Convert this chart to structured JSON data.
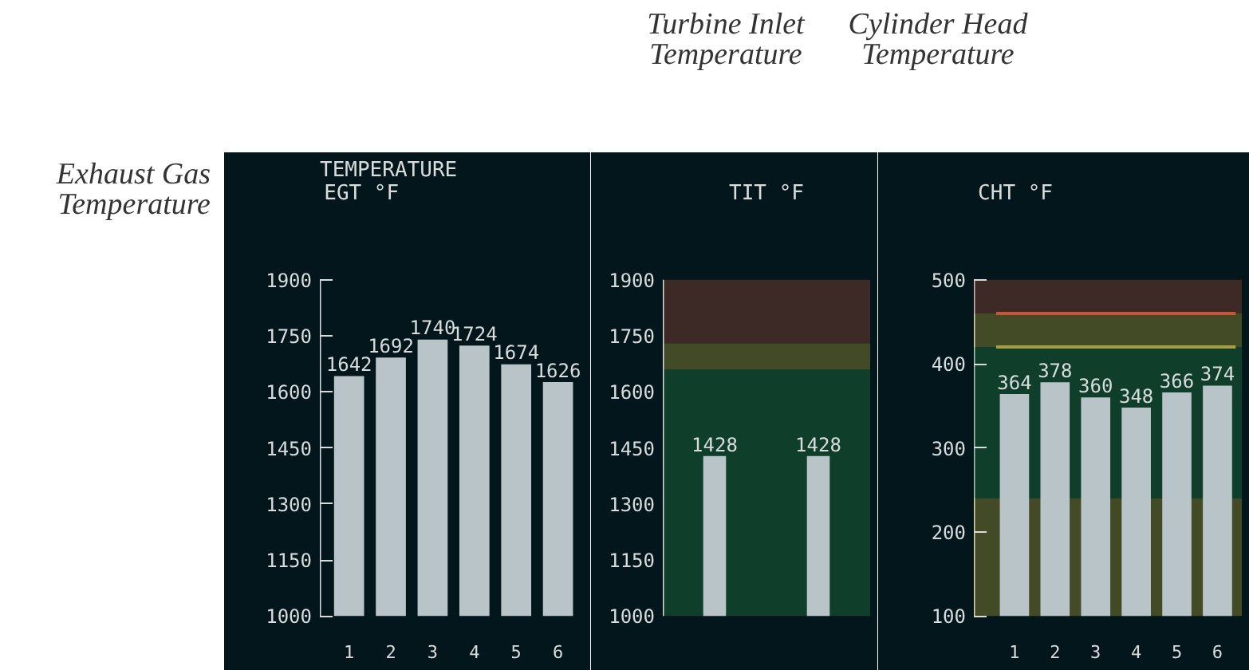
{
  "chart_data": [
    {
      "type": "bar",
      "title": "EGT °F",
      "categories": [
        "1",
        "2",
        "3",
        "4",
        "5",
        "6"
      ],
      "values": [
        1642,
        1692,
        1740,
        1724,
        1674,
        1626
      ],
      "color": "#b8c4c8",
      "ylim": [
        1000,
        1900
      ],
      "yticks": [
        1000,
        1150,
        1300,
        1450,
        1600,
        1750,
        1900
      ],
      "data_labels": true,
      "grid": false,
      "annotations": [
        "TEMPERATURE",
        "Exhaust Gas Temperature"
      ]
    },
    {
      "type": "bar",
      "title": "TIT °F",
      "categories": [
        null,
        null
      ],
      "values": [
        1428,
        1428
      ],
      "color": "#b8c4c8",
      "ylim": [
        1000,
        1900
      ],
      "yticks": [
        1000,
        1150,
        1300,
        1450,
        1600,
        1750,
        1900
      ],
      "data_labels": true,
      "grid": false,
      "bands": [
        {
          "axis": "y",
          "from": 1000,
          "to": 1660,
          "color": "#2f9a4c"
        },
        {
          "axis": "y",
          "from": 1660,
          "to": 1730,
          "color": "#d8c840"
        },
        {
          "axis": "y",
          "from": 1730,
          "to": 1900,
          "color": "#c8553a"
        }
      ],
      "annotations": [
        "Turbine Inlet Temperature"
      ]
    },
    {
      "type": "bar",
      "title": "CHT °F",
      "categories": [
        "1",
        "2",
        "3",
        "4",
        "5",
        "6"
      ],
      "values": [
        364,
        378,
        360,
        348,
        366,
        374
      ],
      "color": "#b8c4c8",
      "ylim": [
        100,
        500
      ],
      "yticks": [
        100,
        200,
        300,
        400,
        500
      ],
      "data_labels": true,
      "grid": false,
      "bands": [
        {
          "axis": "y",
          "from": 100,
          "to": 240,
          "color": "#d8c840"
        },
        {
          "axis": "y",
          "from": 240,
          "to": 420,
          "color": "#2f9a4c"
        },
        {
          "axis": "y",
          "from": 420,
          "to": 460,
          "color": "#d8c840"
        },
        {
          "axis": "y",
          "from": 460,
          "to": 500,
          "color": "#c8553a"
        }
      ],
      "ref_lines": [
        {
          "axis": "y",
          "value": 460,
          "color": "#c8553a"
        },
        {
          "axis": "y",
          "value": 420,
          "color": "#a8a040"
        }
      ],
      "annotations": [
        "Cylinder Head Temperature"
      ]
    }
  ]
}
